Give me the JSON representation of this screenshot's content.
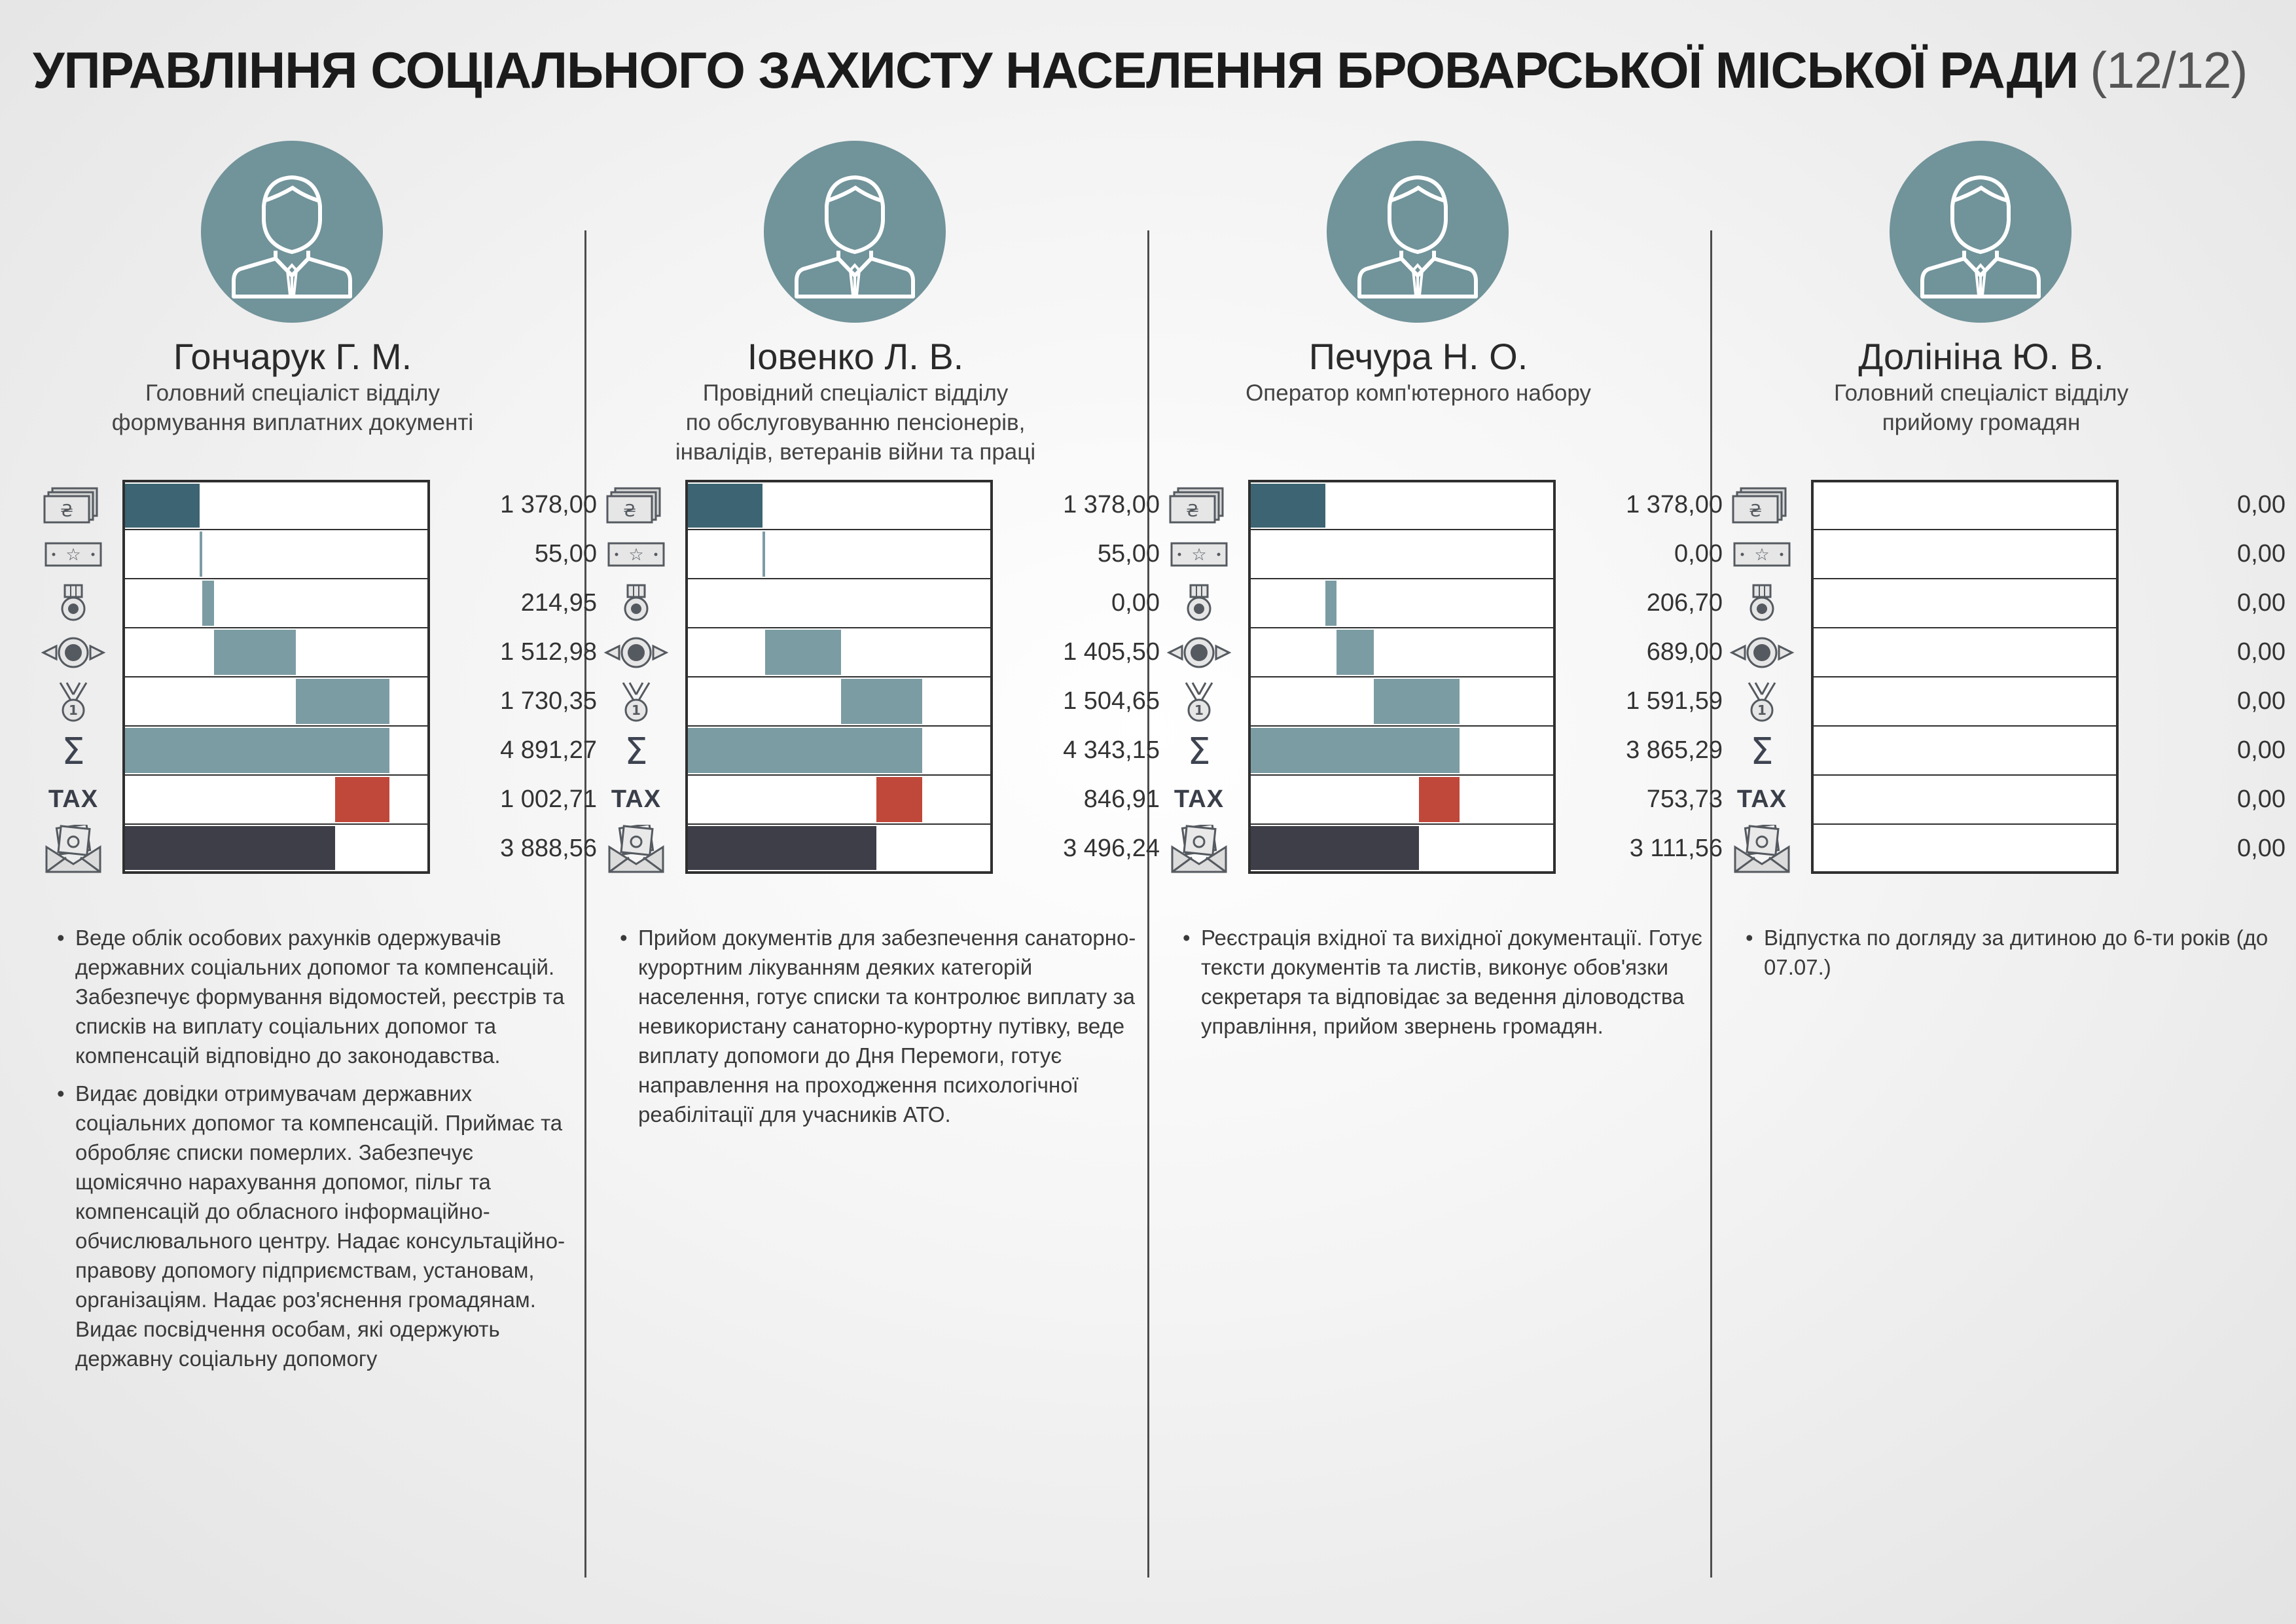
{
  "title": {
    "main": "УПРАВЛІННЯ СОЦІАЛЬНОГО ЗАХИСТУ НАСЕЛЕННЯ БРОВАРСЬКОЇ МІСЬКОЇ РАДИ",
    "page": "(12/12)"
  },
  "colors": {
    "avatar": "#71939a",
    "salary": "#3d6472",
    "components": "#7c9ca3",
    "tax": "#c0483a",
    "net": "#3d3e47"
  },
  "icon_names": [
    "banknotes-icon",
    "star-banknote-icon",
    "medal-icon",
    "award-icon",
    "first-place-medal-icon",
    "sigma-icon",
    "tax-label",
    "envelope-money-icon"
  ],
  "tax_label": "TAX",
  "employees": [
    {
      "name": "Гончарук Г. М.",
      "position": "Головний спеціаліст відділу\nформування виплатних документі",
      "rows": [
        {
          "label": "1 378,00",
          "amount": 1378.0
        },
        {
          "label": "55,00",
          "amount": 55.0
        },
        {
          "label": "214,95",
          "amount": 214.95
        },
        {
          "label": "1 512,98",
          "amount": 1512.98
        },
        {
          "label": "1 730,35",
          "amount": 1730.35
        },
        {
          "label": "4 891,27",
          "amount": 4891.27
        },
        {
          "label": "1 002,71",
          "amount": 1002.71
        },
        {
          "label": "3 888,56",
          "amount": 3888.56
        }
      ],
      "duties": [
        "Веде облік особових рахунків одержувачів державних соціальних допомог та компенсацій. Забезпечує формування відомостей, реєстрів та списків на виплату соціальних допомог та компенсацій відповідно до законодавства.",
        "Видає довідки отримувачам державних соціальних допомог та компенсацій. Приймає та обробляє списки померлих. Забезпечує щомісячно нарахування допомог, пільг та компенсацій до обласного інформаційно-обчислювального центру. Надає консультаційно-правову допомогу підприємствам, установам, організаціям. Надає роз'яснення громадянам. Видає посвідчення особам, які одержують державну соціальну допомогу"
      ]
    },
    {
      "name": "Іовенко Л. В.",
      "position": "Провідний спеціаліст відділу\nпо обслуговуванню пенсіонерів,\nінвалідів, ветеранів війни та праці",
      "rows": [
        {
          "label": "1 378,00",
          "amount": 1378.0
        },
        {
          "label": "55,00",
          "amount": 55.0
        },
        {
          "label": "0,00",
          "amount": 0
        },
        {
          "label": "1 405,50",
          "amount": 1405.5
        },
        {
          "label": "1 504,65",
          "amount": 1504.65
        },
        {
          "label": "4 343,15",
          "amount": 4343.15
        },
        {
          "label": "846,91",
          "amount": 846.91
        },
        {
          "label": "3 496,24",
          "amount": 3496.24
        }
      ],
      "duties": [
        "Прийом документів для забезпечення санаторно-курортним лікуванням деяких категорій населення, готує списки та контролює виплату за невикористану санаторно-курортну путівку, веде виплату допомоги до Дня Перемоги, готує направлення на проходження психологічної реабілітації для учасників АТО."
      ]
    },
    {
      "name": "Печура Н. О.",
      "position": "Оператор комп'ютерного набору",
      "rows": [
        {
          "label": "1 378,00",
          "amount": 1378.0
        },
        {
          "label": "0,00",
          "amount": 0
        },
        {
          "label": "206,70",
          "amount": 206.7
        },
        {
          "label": "689,00",
          "amount": 689.0
        },
        {
          "label": "1 591,59",
          "amount": 1591.59
        },
        {
          "label": "3 865,29",
          "amount": 3865.29
        },
        {
          "label": "753,73",
          "amount": 753.73
        },
        {
          "label": "3 111,56",
          "amount": 3111.56
        }
      ],
      "duties": [
        "Реєстрація вхідної та вихідної документації. Готує тексти документів та листів, виконує обов'язки секретаря та відповідає за ведення діловодства управління, прийом звернень громадян."
      ]
    },
    {
      "name": "Долініна Ю. В.",
      "position": "Головний спеціаліст відділу\nприйому громадян",
      "rows": [
        {
          "label": "0,00",
          "amount": 0
        },
        {
          "label": "0,00",
          "amount": 0
        },
        {
          "label": "0,00",
          "amount": 0
        },
        {
          "label": "0,00",
          "amount": 0
        },
        {
          "label": "0,00",
          "amount": 0
        },
        {
          "label": "0,00",
          "amount": 0
        },
        {
          "label": "0,00",
          "amount": 0
        },
        {
          "label": "0,00",
          "amount": 0
        }
      ],
      "duties": [
        "Відпустка по догляду за дитиною до 6-ти років (до 07.07.)"
      ]
    }
  ]
}
